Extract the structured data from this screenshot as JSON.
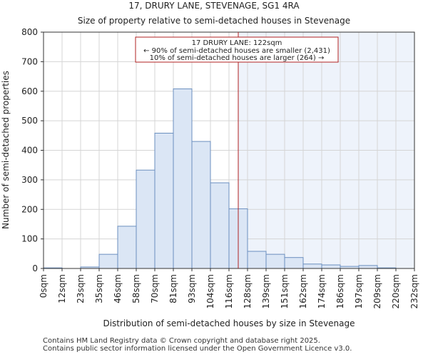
{
  "chart_data": {
    "type": "bar",
    "title": "17, DRURY LANE, STEVENAGE, SG1 4RA",
    "subtitle": "Size of property relative to semi-detached houses in Stevenage",
    "xlabel": "Distribution of semi-detached houses by size in Stevenage",
    "ylabel": "Number of semi-detached properties",
    "ylim": [
      0,
      800
    ],
    "yticks": [
      0,
      100,
      200,
      300,
      400,
      500,
      600,
      700,
      800
    ],
    "x_tick_labels": [
      "0sqm",
      "12sqm",
      "23sqm",
      "35sqm",
      "46sqm",
      "58sqm",
      "70sqm",
      "81sqm",
      "93sqm",
      "104sqm",
      "116sqm",
      "128sqm",
      "139sqm",
      "151sqm",
      "162sqm",
      "174sqm",
      "186sqm",
      "197sqm",
      "209sqm",
      "220sqm",
      "232sqm"
    ],
    "values": [
      2,
      0,
      5,
      48,
      143,
      333,
      458,
      608,
      430,
      290,
      202,
      58,
      48,
      37,
      15,
      12,
      7,
      10,
      2,
      0
    ],
    "property_marker_bin_position": 10.5,
    "grid": true,
    "colors": {
      "bar_fill": "#dbe6f5",
      "bar_edge": "#6b8fbf",
      "marker": "#b22222",
      "highlight_region": "#eef3fb",
      "grid": "#d5d5d5"
    },
    "annotation": {
      "line1": "17 DRURY LANE: 122sqm",
      "line2": "← 90% of semi-detached houses are smaller (2,431)",
      "line3": "10% of semi-detached houses are larger (264) →"
    }
  },
  "footer": {
    "line1": "Contains HM Land Registry data © Crown copyright and database right 2025.",
    "line2": "Contains public sector information licensed under the Open Government Licence v3.0."
  }
}
